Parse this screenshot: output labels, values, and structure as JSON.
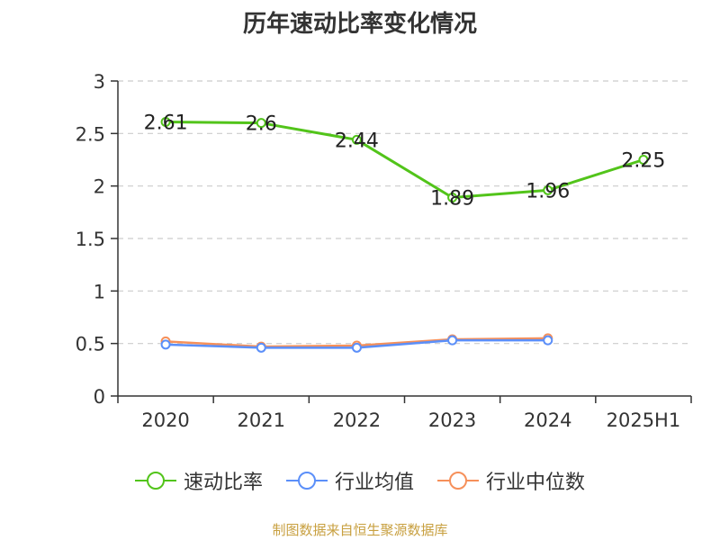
{
  "chart_data": {
    "type": "line",
    "title": "历年速动比率变化情况",
    "categories": [
      "2020",
      "2021",
      "2022",
      "2023",
      "2024",
      "2025H1"
    ],
    "ylim": [
      0,
      3
    ],
    "yticks": [
      "0",
      "0.5",
      "1",
      "1.5",
      "2",
      "2.5",
      "3"
    ],
    "grid": true,
    "legend_position": "bottom",
    "series": [
      {
        "name": "速动比率",
        "color": "#52c41a",
        "values": [
          2.61,
          2.6,
          2.44,
          1.89,
          1.96,
          2.25
        ],
        "labels": [
          "2.61",
          "2.6",
          "2.44",
          "1.89",
          "1.96",
          "2.25"
        ]
      },
      {
        "name": "行业均值",
        "color": "#5b8ff9",
        "values": [
          0.49,
          0.46,
          0.46,
          0.53,
          0.53,
          null
        ]
      },
      {
        "name": "行业中位数",
        "color": "#f6905a",
        "values": [
          0.52,
          0.47,
          0.48,
          0.54,
          0.55,
          null
        ]
      }
    ]
  },
  "source_note": "制图数据来自恒生聚源数据库"
}
